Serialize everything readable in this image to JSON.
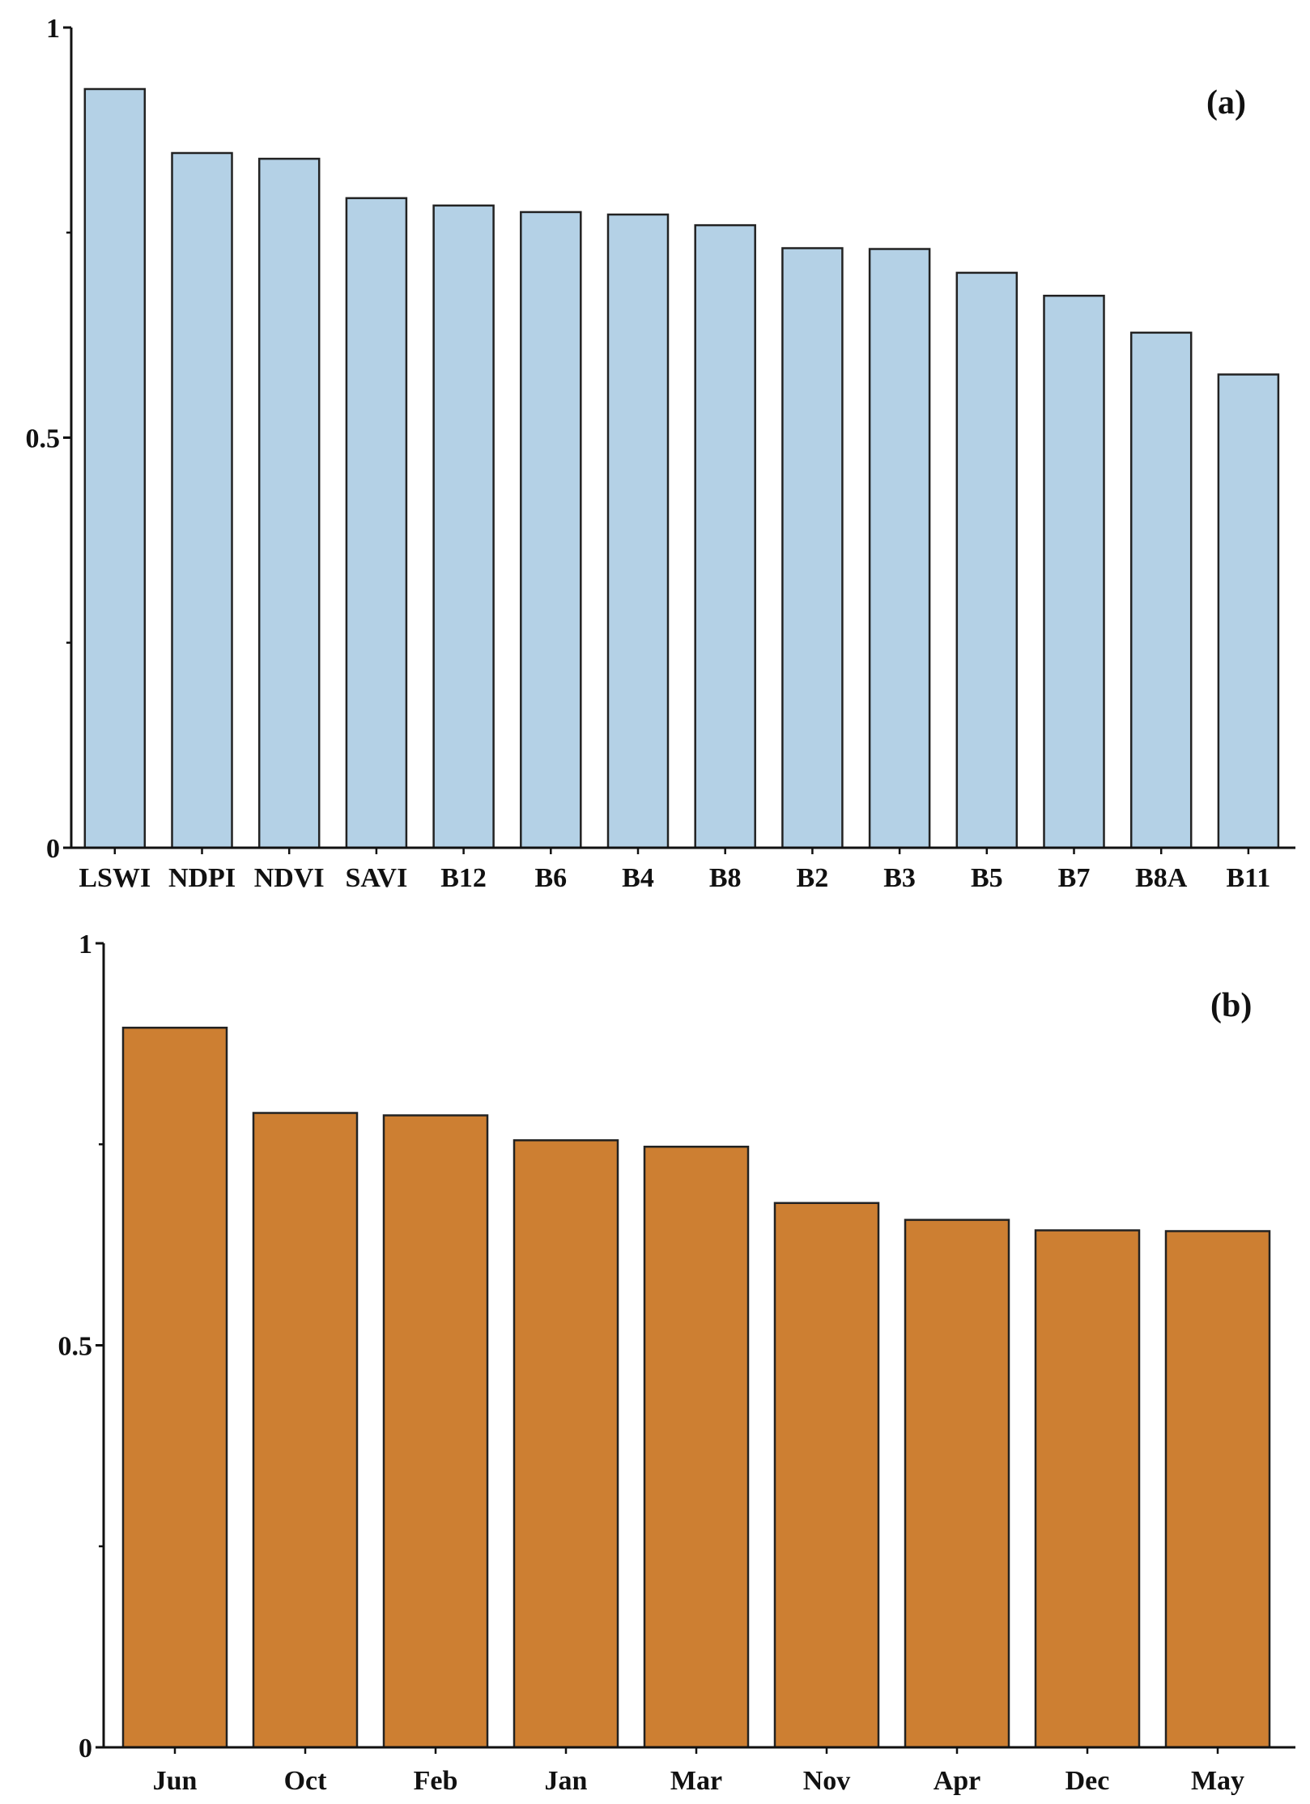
{
  "chart_data": [
    {
      "type": "bar",
      "panel_label": "(a)",
      "categories": [
        "LSWI",
        "NDPI",
        "NDVI",
        "SAVI",
        "B12",
        "B6",
        "B4",
        "B8",
        "B2",
        "B3",
        "B5",
        "B7",
        "B8A",
        "B11"
      ],
      "values": [
        0.925,
        0.847,
        0.84,
        0.792,
        0.783,
        0.775,
        0.772,
        0.759,
        0.731,
        0.73,
        0.701,
        0.673,
        0.628,
        0.577
      ],
      "ylim": [
        0,
        1
      ],
      "yticks": [
        {
          "value": 0,
          "label": "0"
        },
        {
          "value": 0.5,
          "label": "0.5"
        },
        {
          "value": 1,
          "label": "1"
        }
      ],
      "yminor_ticks": [
        0.25,
        0.75
      ],
      "bar_color": "#b4d1e6",
      "edge_color": "#222222",
      "title": "",
      "xlabel": "",
      "ylabel": "",
      "grid": false
    },
    {
      "type": "bar",
      "panel_label": "(b)",
      "categories": [
        "Jun",
        "Oct",
        "Feb",
        "Jan",
        "Mar",
        "Nov",
        "Apr",
        "Dec",
        "May"
      ],
      "values": [
        0.895,
        0.789,
        0.786,
        0.755,
        0.747,
        0.677,
        0.656,
        0.643,
        0.642
      ],
      "ylim": [
        0,
        1
      ],
      "yticks": [
        {
          "value": 0,
          "label": "0"
        },
        {
          "value": 0.5,
          "label": "0.5"
        },
        {
          "value": 1,
          "label": "1"
        }
      ],
      "yminor_ticks": [
        0.25,
        0.75
      ],
      "bar_color": "#cd7f32",
      "edge_color": "#222222",
      "title": "",
      "xlabel": "",
      "ylabel": "",
      "grid": false
    }
  ]
}
